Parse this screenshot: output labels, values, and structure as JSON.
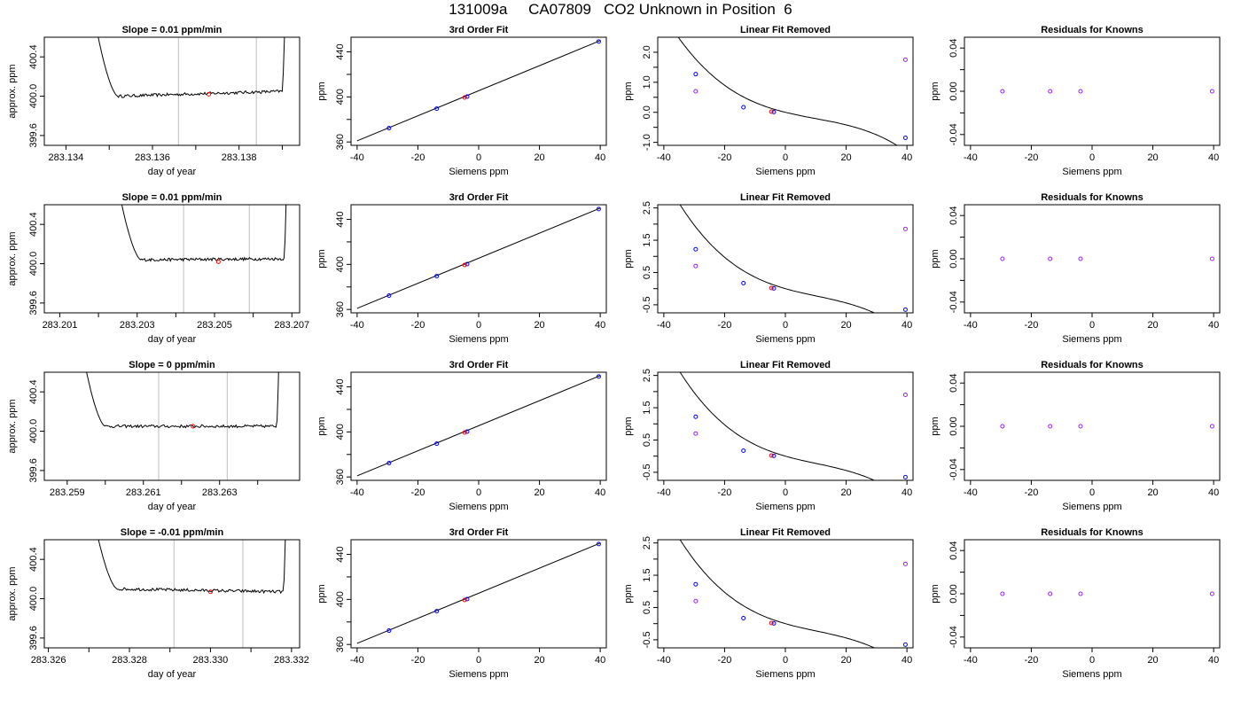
{
  "header": {
    "title": "131009a     CA07809   CO2 Unknown in Position  6"
  },
  "colors": {
    "trace": "#000000",
    "known_point": "#0000ff",
    "unknown_point": "#ff0000",
    "residual_point": "#a020f0",
    "vertical_guides": "#bebebe"
  },
  "chart_data": [
    {
      "type": "line",
      "title": "Slope =  0.01  ppm/min",
      "xlabel": "day of year",
      "ylabel": "approx. ppm",
      "xlim": [
        283.1335,
        283.1394
      ],
      "ylim": [
        399.5,
        400.6
      ],
      "xticks": [
        283.134,
        283.136,
        283.138
      ],
      "yticks": [
        399.6,
        400.0,
        400.4
      ],
      "xtick_labels": [
        "283.134",
        "283.136",
        "283.138"
      ],
      "ytick_labels": [
        "399.6",
        "400.0",
        "400.4"
      ],
      "minor_xticks": [
        283.135,
        283.137,
        283.139
      ],
      "guides": [
        283.1366,
        283.1384
      ],
      "trace": {
        "start": 283.1345,
        "plateau_start": 283.1352,
        "plateau_end": 283.139,
        "end": 283.1391,
        "level_start": 400.0,
        "level_end": 400.05
      },
      "marker": {
        "x": 283.1373,
        "y": 400.02
      }
    },
    {
      "type": "scatter",
      "title": "3rd Order Fit",
      "xlabel": "Siemens ppm",
      "ylabel": "ppm",
      "xlim": [
        -42,
        42
      ],
      "ylim": [
        357,
        453
      ],
      "xticks": [
        -40,
        -20,
        0,
        20,
        40
      ],
      "yticks": [
        360,
        400,
        440
      ],
      "xtick_labels": [
        "-40",
        "-20",
        "0",
        "20",
        "40"
      ],
      "ytick_labels": [
        "360",
        "400",
        "440"
      ],
      "minor_yticks": [
        380,
        420
      ],
      "line": {
        "x": [
          -40,
          40
        ],
        "y": [
          361,
          450
        ]
      },
      "points": [
        {
          "x": -29.5,
          "y": 372.3,
          "kind": "known"
        },
        {
          "x": -13.8,
          "y": 389.6,
          "kind": "known"
        },
        {
          "x": -3.8,
          "y": 400.3,
          "kind": "known"
        },
        {
          "x": 39.5,
          "y": 449.2,
          "kind": "known"
        },
        {
          "x": -4.6,
          "y": 399.5,
          "kind": "unknown"
        }
      ]
    },
    {
      "type": "scatter",
      "title": "Linear Fit Removed",
      "xlabel": "Siemens ppm",
      "ylabel": "ppm",
      "xlim": [
        -42,
        42
      ],
      "ylim": [
        -1.1,
        2.5
      ],
      "xticks": [
        -40,
        -20,
        0,
        20,
        40
      ],
      "yticks": [
        -1.0,
        0.0,
        1.0,
        2.0
      ],
      "xtick_labels": [
        "-40",
        "-20",
        "0",
        "20",
        "40"
      ],
      "ytick_labels": [
        "-1.0",
        "0.0",
        "1.0",
        "2.0"
      ],
      "minor_yticks": [
        -0.5,
        0.5,
        1.5
      ],
      "curve": {
        "c0": 0.0,
        "c1": -0.025,
        "c2": 0.0006,
        "c3": -2e-05,
        "range": [
          -40,
          40
        ]
      },
      "points": [
        {
          "x": -29.5,
          "y": 1.27,
          "kind": "known"
        },
        {
          "x": -13.8,
          "y": 0.17,
          "kind": "known"
        },
        {
          "x": -3.8,
          "y": 0.01,
          "kind": "known"
        },
        {
          "x": 39.5,
          "y": -0.85,
          "kind": "known"
        },
        {
          "x": -4.6,
          "y": 0.02,
          "kind": "unknown"
        },
        {
          "x": -29.5,
          "y": 0.7,
          "kind": "raw"
        },
        {
          "x": 39.5,
          "y": 1.75,
          "kind": "raw"
        }
      ]
    },
    {
      "type": "scatter",
      "title": "Residuals for Knowns",
      "xlabel": "Siemens ppm",
      "ylabel": "ppm",
      "xlim": [
        -42,
        42
      ],
      "ylim": [
        -0.05,
        0.05
      ],
      "xticks": [
        -40,
        -20,
        0,
        20,
        40
      ],
      "yticks": [
        -0.04,
        0.0,
        0.04
      ],
      "xtick_labels": [
        "-40",
        "-20",
        "0",
        "20",
        "40"
      ],
      "ytick_labels": [
        "-0.04",
        "0.00",
        "0.04"
      ],
      "minor_yticks": [
        -0.02,
        0.02
      ],
      "points": [
        {
          "x": -29.5,
          "y": 0.0,
          "kind": "residual"
        },
        {
          "x": -13.8,
          "y": 0.0,
          "kind": "residual"
        },
        {
          "x": -3.8,
          "y": 0.0,
          "kind": "residual"
        },
        {
          "x": 39.5,
          "y": 0.0,
          "kind": "residual"
        }
      ]
    },
    {
      "type": "line",
      "title": "Slope =  0.01  ppm/min",
      "xlabel": "day of year",
      "ylabel": "approx. ppm",
      "xlim": [
        283.2006,
        283.2072
      ],
      "ylim": [
        399.5,
        400.6
      ],
      "xticks": [
        283.201,
        283.203,
        283.205,
        283.207
      ],
      "yticks": [
        399.6,
        400.0,
        400.4
      ],
      "xtick_labels": [
        "283.201",
        "283.203",
        "283.205",
        "283.207"
      ],
      "ytick_labels": [
        "399.6",
        "400.0",
        "400.4"
      ],
      "minor_xticks": [
        283.202,
        283.204,
        283.206
      ],
      "guides": [
        283.2042,
        283.2059
      ],
      "trace": {
        "start": 283.2023,
        "plateau_start": 283.2031,
        "plateau_end": 283.2068,
        "end": 283.2069,
        "level_start": 400.04,
        "level_end": 400.05
      },
      "marker": {
        "x": 283.2051,
        "y": 400.02
      }
    },
    {
      "type": "scatter",
      "title": "3rd Order Fit",
      "xlabel": "Siemens ppm",
      "ylabel": "ppm",
      "xlim": [
        -42,
        42
      ],
      "ylim": [
        357,
        453
      ],
      "xticks": [
        -40,
        -20,
        0,
        20,
        40
      ],
      "yticks": [
        360,
        400,
        440
      ],
      "xtick_labels": [
        "-40",
        "-20",
        "0",
        "20",
        "40"
      ],
      "ytick_labels": [
        "360",
        "400",
        "440"
      ],
      "minor_yticks": [
        380,
        420
      ],
      "line": {
        "x": [
          -40,
          40
        ],
        "y": [
          361,
          450
        ]
      },
      "points": [
        {
          "x": -29.5,
          "y": 372.3,
          "kind": "known"
        },
        {
          "x": -13.8,
          "y": 389.6,
          "kind": "known"
        },
        {
          "x": -3.8,
          "y": 400.3,
          "kind": "known"
        },
        {
          "x": 39.5,
          "y": 449.2,
          "kind": "known"
        },
        {
          "x": -4.6,
          "y": 399.5,
          "kind": "unknown"
        }
      ]
    },
    {
      "type": "scatter",
      "title": "Linear Fit Removed",
      "xlabel": "Siemens ppm",
      "ylabel": "ppm",
      "xlim": [
        -42,
        42
      ],
      "ylim": [
        -0.75,
        2.6
      ],
      "xticks": [
        -40,
        -20,
        0,
        20,
        40
      ],
      "yticks": [
        -0.5,
        0.5,
        1.5,
        2.5
      ],
      "xtick_labels": [
        "-40",
        "-20",
        "0",
        "20",
        "40"
      ],
      "ytick_labels": [
        "-0.5",
        "0.5",
        "1.5",
        "2.5"
      ],
      "minor_yticks": [
        0.0,
        1.0,
        2.0
      ],
      "curve": {
        "c0": 0.0,
        "c1": -0.027,
        "c2": 0.00066,
        "c3": -2.1e-05,
        "range": [
          -40,
          40
        ]
      },
      "points": [
        {
          "x": -29.5,
          "y": 1.22,
          "kind": "known"
        },
        {
          "x": -13.8,
          "y": 0.17,
          "kind": "known"
        },
        {
          "x": -3.8,
          "y": 0.01,
          "kind": "known"
        },
        {
          "x": 39.5,
          "y": -0.65,
          "kind": "known"
        },
        {
          "x": -4.6,
          "y": 0.02,
          "kind": "unknown"
        },
        {
          "x": -29.5,
          "y": 0.7,
          "kind": "raw"
        },
        {
          "x": 39.5,
          "y": 1.85,
          "kind": "raw"
        }
      ]
    },
    {
      "type": "scatter",
      "title": "Residuals for Knowns",
      "xlabel": "Siemens ppm",
      "ylabel": "ppm",
      "xlim": [
        -42,
        42
      ],
      "ylim": [
        -0.05,
        0.05
      ],
      "xticks": [
        -40,
        -20,
        0,
        20,
        40
      ],
      "yticks": [
        -0.04,
        0.0,
        0.04
      ],
      "xtick_labels": [
        "-40",
        "-20",
        "0",
        "20",
        "40"
      ],
      "ytick_labels": [
        "-0.04",
        "0.00",
        "0.04"
      ],
      "minor_yticks": [
        -0.02,
        0.02
      ],
      "points": [
        {
          "x": -29.5,
          "y": 0.0,
          "kind": "residual"
        },
        {
          "x": -13.8,
          "y": 0.0,
          "kind": "residual"
        },
        {
          "x": -3.8,
          "y": 0.0,
          "kind": "residual"
        },
        {
          "x": 39.5,
          "y": 0.0,
          "kind": "residual"
        }
      ]
    },
    {
      "type": "line",
      "title": "Slope =  0  ppm/min",
      "xlabel": "day of year",
      "ylabel": "approx. ppm",
      "xlim": [
        283.2584,
        283.2651
      ],
      "ylim": [
        399.5,
        400.6
      ],
      "xticks": [
        283.259,
        283.261,
        283.263
      ],
      "yticks": [
        399.6,
        400.0,
        400.4
      ],
      "xtick_labels": [
        "283.259",
        "283.261",
        "283.263"
      ],
      "ytick_labels": [
        "399.6",
        "400.0",
        "400.4"
      ],
      "minor_xticks": [
        283.26,
        283.262,
        283.264
      ],
      "guides": [
        283.2614,
        283.2632
      ],
      "trace": {
        "start": 283.2592,
        "plateau_start": 283.26,
        "plateau_end": 283.2645,
        "end": 283.2646,
        "level_start": 400.05,
        "level_end": 400.05
      },
      "marker": {
        "x": 283.2623,
        "y": 400.05
      }
    },
    {
      "type": "scatter",
      "title": "3rd Order Fit",
      "xlabel": "Siemens ppm",
      "ylabel": "ppm",
      "xlim": [
        -42,
        42
      ],
      "ylim": [
        357,
        453
      ],
      "xticks": [
        -40,
        -20,
        0,
        20,
        40
      ],
      "yticks": [
        360,
        400,
        440
      ],
      "xtick_labels": [
        "-40",
        "-20",
        "0",
        "20",
        "40"
      ],
      "ytick_labels": [
        "360",
        "400",
        "440"
      ],
      "minor_yticks": [
        380,
        420
      ],
      "line": {
        "x": [
          -40,
          40
        ],
        "y": [
          361,
          450
        ]
      },
      "points": [
        {
          "x": -29.5,
          "y": 372.3,
          "kind": "known"
        },
        {
          "x": -13.8,
          "y": 389.6,
          "kind": "known"
        },
        {
          "x": -3.8,
          "y": 400.3,
          "kind": "known"
        },
        {
          "x": 39.5,
          "y": 449.2,
          "kind": "known"
        },
        {
          "x": -4.6,
          "y": 399.5,
          "kind": "unknown"
        }
      ]
    },
    {
      "type": "scatter",
      "title": "Linear Fit Removed",
      "xlabel": "Siemens ppm",
      "ylabel": "ppm",
      "xlim": [
        -42,
        42
      ],
      "ylim": [
        -0.75,
        2.6
      ],
      "xticks": [
        -40,
        -20,
        0,
        20,
        40
      ],
      "yticks": [
        -0.5,
        0.5,
        1.5,
        2.5
      ],
      "xtick_labels": [
        "-40",
        "-20",
        "0",
        "20",
        "40"
      ],
      "ytick_labels": [
        "-0.5",
        "0.5",
        "1.5",
        "2.5"
      ],
      "minor_yticks": [
        0.0,
        1.0,
        2.0
      ],
      "curve": {
        "c0": 0.0,
        "c1": -0.027,
        "c2": 0.00066,
        "c3": -2.1e-05,
        "range": [
          -40,
          40
        ]
      },
      "points": [
        {
          "x": -29.5,
          "y": 1.22,
          "kind": "known"
        },
        {
          "x": -13.8,
          "y": 0.17,
          "kind": "known"
        },
        {
          "x": -3.8,
          "y": 0.01,
          "kind": "known"
        },
        {
          "x": 39.5,
          "y": -0.65,
          "kind": "known"
        },
        {
          "x": -4.6,
          "y": 0.02,
          "kind": "unknown"
        },
        {
          "x": -29.5,
          "y": 0.7,
          "kind": "raw"
        },
        {
          "x": 39.5,
          "y": 1.9,
          "kind": "raw"
        }
      ]
    },
    {
      "type": "scatter",
      "title": "Residuals for Knowns",
      "xlabel": "Siemens ppm",
      "ylabel": "ppm",
      "xlim": [
        -42,
        42
      ],
      "ylim": [
        -0.05,
        0.05
      ],
      "xticks": [
        -40,
        -20,
        0,
        20,
        40
      ],
      "yticks": [
        -0.04,
        0.0,
        0.04
      ],
      "xtick_labels": [
        "-40",
        "-20",
        "0",
        "20",
        "40"
      ],
      "ytick_labels": [
        "-0.04",
        "0.00",
        "0.04"
      ],
      "minor_yticks": [
        -0.02,
        0.02
      ],
      "points": [
        {
          "x": -29.5,
          "y": 0.0,
          "kind": "residual"
        },
        {
          "x": -13.8,
          "y": 0.0,
          "kind": "residual"
        },
        {
          "x": -3.8,
          "y": 0.0,
          "kind": "residual"
        },
        {
          "x": 39.5,
          "y": 0.0,
          "kind": "residual"
        }
      ]
    },
    {
      "type": "line",
      "title": "Slope =  -0.01  ppm/min",
      "xlabel": "day of year",
      "ylabel": "approx. ppm",
      "xlim": [
        283.3259,
        283.3322
      ],
      "ylim": [
        399.5,
        400.6
      ],
      "xticks": [
        283.326,
        283.328,
        283.33,
        283.332
      ],
      "yticks": [
        399.6,
        400.0,
        400.4
      ],
      "xtick_labels": [
        "283.326",
        "283.328",
        "283.330",
        "283.332"
      ],
      "ytick_labels": [
        "399.6",
        "400.0",
        "400.4"
      ],
      "minor_xticks": [
        283.327,
        283.329,
        283.331
      ],
      "guides": [
        283.3291,
        283.3308
      ],
      "trace": {
        "start": 283.3269,
        "plateau_start": 283.3277,
        "plateau_end": 283.3318,
        "end": 283.3319,
        "level_start": 400.1,
        "level_end": 400.07
      },
      "marker": {
        "x": 283.33,
        "y": 400.07
      }
    },
    {
      "type": "scatter",
      "title": "3rd Order Fit",
      "xlabel": "Siemens ppm",
      "ylabel": "ppm",
      "xlim": [
        -42,
        42
      ],
      "ylim": [
        357,
        453
      ],
      "xticks": [
        -40,
        -20,
        0,
        20,
        40
      ],
      "yticks": [
        360,
        400,
        440
      ],
      "xtick_labels": [
        "-40",
        "-20",
        "0",
        "20",
        "40"
      ],
      "ytick_labels": [
        "360",
        "400",
        "440"
      ],
      "minor_yticks": [
        380,
        420
      ],
      "line": {
        "x": [
          -40,
          40
        ],
        "y": [
          361,
          450
        ]
      },
      "points": [
        {
          "x": -29.5,
          "y": 372.3,
          "kind": "known"
        },
        {
          "x": -13.8,
          "y": 389.6,
          "kind": "known"
        },
        {
          "x": -3.8,
          "y": 400.3,
          "kind": "known"
        },
        {
          "x": 39.5,
          "y": 449.2,
          "kind": "known"
        },
        {
          "x": -4.6,
          "y": 399.5,
          "kind": "unknown"
        }
      ]
    },
    {
      "type": "scatter",
      "title": "Linear Fit Removed",
      "xlabel": "Siemens ppm",
      "ylabel": "ppm",
      "xlim": [
        -42,
        42
      ],
      "ylim": [
        -0.75,
        2.6
      ],
      "xticks": [
        -40,
        -20,
        0,
        20,
        40
      ],
      "yticks": [
        -0.5,
        0.5,
        1.5,
        2.5
      ],
      "xtick_labels": [
        "-40",
        "-20",
        "0",
        "20",
        "40"
      ],
      "ytick_labels": [
        "-0.5",
        "0.5",
        "1.5",
        "2.5"
      ],
      "minor_yticks": [
        0.0,
        1.0,
        2.0
      ],
      "curve": {
        "c0": 0.0,
        "c1": -0.027,
        "c2": 0.00066,
        "c3": -2.1e-05,
        "range": [
          -40,
          40
        ]
      },
      "points": [
        {
          "x": -29.5,
          "y": 1.22,
          "kind": "known"
        },
        {
          "x": -13.8,
          "y": 0.17,
          "kind": "known"
        },
        {
          "x": -3.8,
          "y": 0.01,
          "kind": "known"
        },
        {
          "x": 39.5,
          "y": -0.65,
          "kind": "known"
        },
        {
          "x": -4.6,
          "y": 0.02,
          "kind": "unknown"
        },
        {
          "x": -29.5,
          "y": 0.7,
          "kind": "raw"
        },
        {
          "x": 39.5,
          "y": 1.85,
          "kind": "raw"
        }
      ]
    },
    {
      "type": "scatter",
      "title": "Residuals for Knowns",
      "xlabel": "Siemens ppm",
      "ylabel": "ppm",
      "xlim": [
        -42,
        42
      ],
      "ylim": [
        -0.05,
        0.05
      ],
      "xticks": [
        -40,
        -20,
        0,
        20,
        40
      ],
      "yticks": [
        -0.04,
        0.0,
        0.04
      ],
      "xtick_labels": [
        "-40",
        "-20",
        "0",
        "20",
        "40"
      ],
      "ytick_labels": [
        "-0.04",
        "0.00",
        "0.04"
      ],
      "minor_yticks": [
        -0.02,
        0.02
      ],
      "points": [
        {
          "x": -29.5,
          "y": 0.0,
          "kind": "residual"
        },
        {
          "x": -13.8,
          "y": 0.0,
          "kind": "residual"
        },
        {
          "x": -3.8,
          "y": 0.0,
          "kind": "residual"
        },
        {
          "x": 39.5,
          "y": 0.0,
          "kind": "residual"
        }
      ]
    }
  ]
}
